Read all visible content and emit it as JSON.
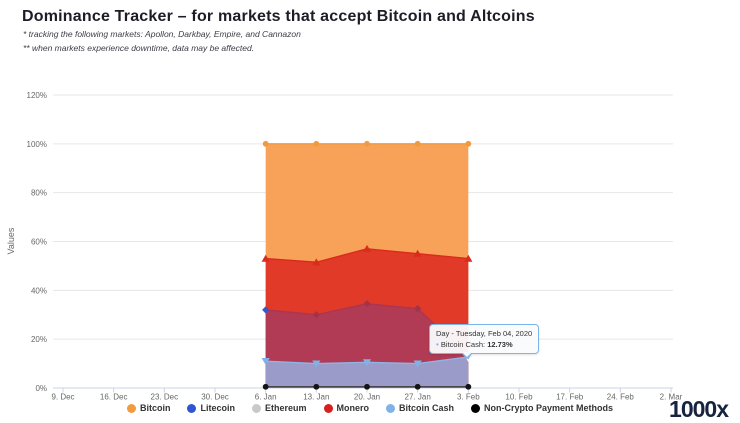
{
  "header": {
    "title": "Dominance Tracker – for markets that accept Bitcoin and Altcoins",
    "note1": "* tracking the following markets: Apollon, Darkbay, Empire, and Cannazon",
    "note2": "** when markets experience downtime, data may be affected."
  },
  "chart_data": {
    "type": "area",
    "title": "",
    "xlabel": "",
    "ylabel": "Values",
    "ylim": [
      0,
      120
    ],
    "grid": true,
    "legend_position": "bottom",
    "y_tick_values": [
      0,
      20,
      40,
      60,
      80,
      100,
      120
    ],
    "y_tick_labels": [
      "0%",
      "20%",
      "40%",
      "60%",
      "80%",
      "100%",
      "120%"
    ],
    "x_tick_labels": [
      "9. Dec",
      "16. Dec",
      "23. Dec",
      "30. Dec",
      "6. Jan",
      "13. Jan",
      "20. Jan",
      "27. Jan",
      "3. Feb",
      "10. Feb",
      "17. Feb",
      "24. Feb",
      "2. Mar"
    ],
    "x_tick_days": [
      0,
      7,
      14,
      21,
      28,
      35,
      42,
      49,
      56,
      63,
      70,
      77,
      84
    ],
    "point_dates": [
      "Jan 07, 2020",
      "Jan 14, 2020",
      "Jan 21, 2020",
      "Jan 28, 2020",
      "Feb 04, 2020"
    ],
    "point_days": [
      28,
      35,
      42,
      49,
      56
    ],
    "series": [
      {
        "name": "Bitcoin",
        "render": true,
        "marker": "circle",
        "color": "#F29A3F",
        "fill_color": "#F8A159",
        "line_color": "#F19B3E",
        "marker_colors": [
          "#F29A3F",
          "#F29A3F",
          "#F29A3F",
          "#F29A3F",
          "#F29A3F"
        ],
        "values": [
          100,
          100,
          100,
          100,
          100
        ]
      },
      {
        "name": "Litecoin",
        "render": true,
        "marker": "diamond",
        "color": "#3A57C8",
        "fill_color": "#B13B54",
        "line_color": "#AC3550",
        "marker_colors": [
          "#3A57C8",
          "#A23449",
          "#A23449",
          "#A23449",
          "#A23449"
        ],
        "values": [
          32,
          30,
          34.5,
          32.5,
          13
        ]
      },
      {
        "name": "Ethereum",
        "render": false,
        "marker": "square",
        "color": "#C9C9C9",
        "fill_color": "none",
        "line_color": "#C9C9C9",
        "marker_colors": [],
        "values": [
          0,
          0,
          0,
          0,
          0
        ]
      },
      {
        "name": "Monero",
        "render": true,
        "marker": "triangle",
        "color": "#DA2C1B",
        "fill_color": "#E23A28",
        "line_color": "#D92B1C",
        "marker_colors": [
          "#DA2C1B",
          "#DA2C1B",
          "#DA2C1B",
          "#DA2C1B",
          "#DA2C1B"
        ],
        "values": [
          53,
          51.5,
          57,
          55,
          53
        ]
      },
      {
        "name": "Bitcoin Cash",
        "render": true,
        "marker": "triangle-down",
        "color": "#7FB3E8",
        "fill_color": "#9B9BCA",
        "line_color": "#8FB4E3",
        "marker_colors": [
          "#7FB3E8",
          "#7FB3E8",
          "#7FB3E8",
          "#7FB3E8",
          "#7FB3E8"
        ],
        "highlight_last": true,
        "values": [
          11,
          10,
          10.5,
          10,
          12.73
        ]
      },
      {
        "name": "Non-Crypto Payment Methods",
        "render": true,
        "marker": "circle",
        "color": "#141414",
        "fill_color": "none",
        "line_color": "#3A3A3A",
        "marker_colors": [
          "#141414",
          "#141414",
          "#141414",
          "#141414",
          "#141414"
        ],
        "values": [
          0.5,
          0.5,
          0.5,
          0.5,
          0.5
        ]
      }
    ],
    "area_draw_order": [
      "Bitcoin",
      "Monero",
      "Litecoin",
      "Bitcoin Cash",
      "Non-Crypto Payment Methods"
    ],
    "colors": {
      "gridline": "#E7E7E7",
      "axis_line": "#C9D3E6",
      "tick_text": "#666666"
    }
  },
  "legend": {
    "items": [
      {
        "label": "Bitcoin",
        "color": "#F29A3F"
      },
      {
        "label": "Litecoin",
        "color": "#2E55D4"
      },
      {
        "label": "Ethereum",
        "color": "#C9C9C9"
      },
      {
        "label": "Monero",
        "color": "#D6201F"
      },
      {
        "label": "Bitcoin Cash",
        "color": "#7FB3E8"
      },
      {
        "label": "Non-Crypto Payment Methods",
        "color": "#000000"
      }
    ]
  },
  "tooltip": {
    "day_line": "Day - Tuesday, Feb 04, 2020",
    "bullet": "•",
    "label": "Bitcoin Cash:",
    "value": "12.73%",
    "bullet_color": "#7FB3E8"
  },
  "logo": {
    "text": "1000x"
  }
}
